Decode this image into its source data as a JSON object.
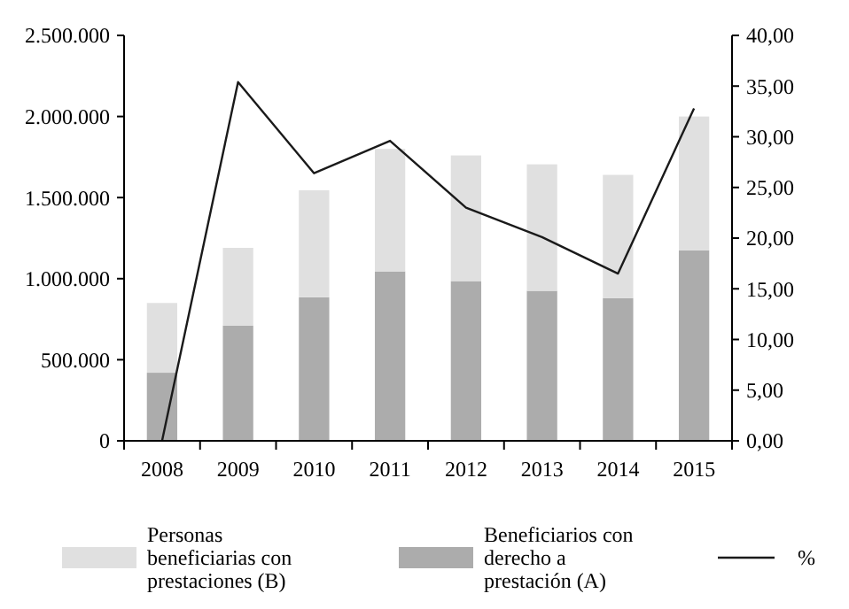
{
  "chart_data": {
    "type": "bar",
    "stacked": true,
    "categories": [
      "2008",
      "2009",
      "2010",
      "2011",
      "2012",
      "2013",
      "2014",
      "2015"
    ],
    "series": [
      {
        "name": "Beneficiarios con derecho a prestación (A)",
        "color": "#acacac",
        "values": [
          420000,
          710000,
          885000,
          1045000,
          985000,
          925000,
          880000,
          1175000
        ]
      },
      {
        "name": "Personas beneficiarias con prestaciones (B)",
        "color": "#e0e0e0",
        "values": [
          430000,
          480000,
          660000,
          755000,
          775000,
          780000,
          760000,
          825000
        ]
      },
      {
        "name": "%",
        "type": "line",
        "axis": "y2",
        "color": "#1a1a1a",
        "values": [
          0,
          35.4,
          26.4,
          29.6,
          23.0,
          20.1,
          16.5,
          32.8
        ]
      }
    ],
    "ylim": [
      0,
      2500000
    ],
    "yticks": [
      {
        "value": 0,
        "label": "0"
      },
      {
        "value": 500000,
        "label": "500.000"
      },
      {
        "value": 1000000,
        "label": "1.000.000"
      },
      {
        "value": 1500000,
        "label": "1.500.000"
      },
      {
        "value": 2000000,
        "label": "2.000.000"
      },
      {
        "value": 2500000,
        "label": "2.500.000"
      }
    ],
    "y2lim": [
      0,
      40
    ],
    "y2ticks": [
      {
        "value": 0,
        "label": "0,00"
      },
      {
        "value": 5,
        "label": "5,00"
      },
      {
        "value": 10,
        "label": "10,00"
      },
      {
        "value": 15,
        "label": "15,00"
      },
      {
        "value": 20,
        "label": "20,00"
      },
      {
        "value": 25,
        "label": "25,00"
      },
      {
        "value": 30,
        "label": "30,00"
      },
      {
        "value": 35,
        "label": "35,00"
      },
      {
        "value": 40,
        "label": "40,00"
      }
    ],
    "grid": false,
    "legend": "bottom",
    "marker": "none",
    "line_style": "solid"
  }
}
